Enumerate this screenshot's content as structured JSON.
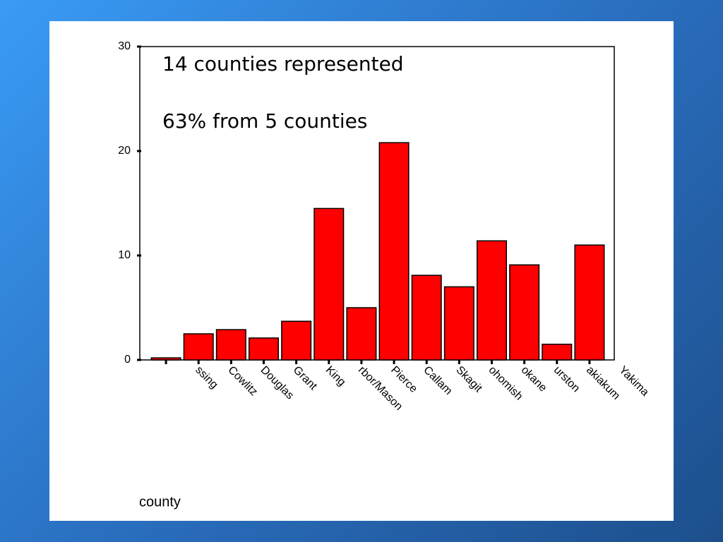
{
  "chart_data": {
    "type": "bar",
    "annotations": [
      "14 counties represented",
      "63% from 5 counties"
    ],
    "x_label": "county",
    "categories": [
      "ssing",
      "Cowlitz",
      "Douglas",
      "Grant",
      "King",
      "rbor/Mason",
      "Pierce",
      "Callam",
      "Skagit",
      "ohomish",
      "okane",
      "urston",
      "akiakum",
      "Yakima"
    ],
    "values": [
      0.2,
      2.5,
      2.9,
      2.1,
      3.7,
      14.5,
      5.0,
      20.8,
      8.1,
      7.0,
      11.4,
      9.1,
      1.5,
      11.0
    ],
    "color": "#ff0000",
    "ylim": [
      0,
      30
    ],
    "yticks": [
      0,
      10,
      20,
      30
    ]
  }
}
